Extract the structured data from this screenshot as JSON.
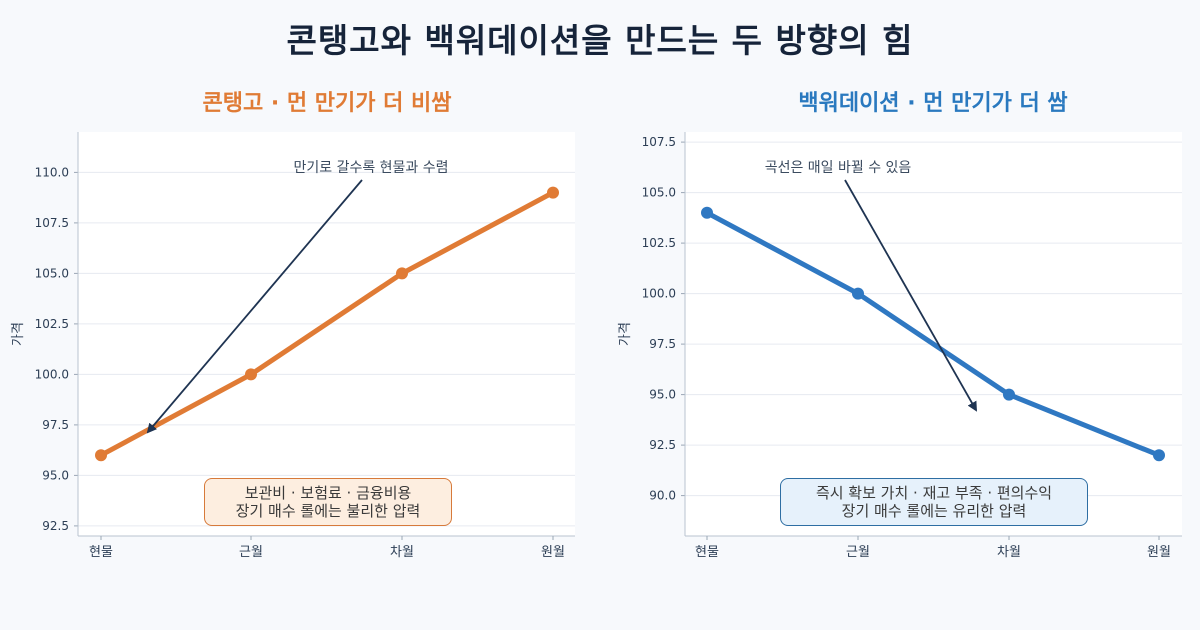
{
  "title": "콘탱고와 백워데이션을 만드는 두 방향의 힘",
  "chart_data": [
    {
      "type": "line",
      "title": "콘탱고 · 먼 만기가 더 비쌈",
      "title_color": "#e07b35",
      "color": "#e07b35",
      "categories": [
        "현물",
        "근월",
        "차월",
        "원월"
      ],
      "values": [
        96.0,
        100.0,
        105.0,
        109.0
      ],
      "ylabel": "가격",
      "ylim": [
        92.0,
        112.0
      ],
      "yticks": [
        "92.5",
        "95.0",
        "97.5",
        "100.0",
        "102.5",
        "105.0",
        "107.5",
        "110.0"
      ],
      "grid": true,
      "annotation": "만기로 갈수록 현물과 수렴",
      "note_lines": [
        "보관비 · 보험료 · 금융비용",
        "장기 매수 롤에는 불리한 압력"
      ]
    },
    {
      "type": "line",
      "title": "백워데이션 · 먼 만기가 더 쌈",
      "title_color": "#2a79bf",
      "color": "#2f78c2",
      "categories": [
        "현물",
        "근월",
        "차월",
        "원월"
      ],
      "values": [
        104.0,
        100.0,
        95.0,
        92.0
      ],
      "ylabel": "가격",
      "ylim": [
        88.0,
        108.0
      ],
      "yticks": [
        "90.0",
        "92.5",
        "95.0",
        "97.5",
        "100.0",
        "102.5",
        "105.0",
        "107.5"
      ],
      "grid": true,
      "annotation": "곡선은 매일 바뀔 수 있음",
      "note_lines": [
        "즉시 확보 가치 · 재고 부족 · 편의수익",
        "장기 매수 롤에는 유리한 압력"
      ]
    }
  ]
}
